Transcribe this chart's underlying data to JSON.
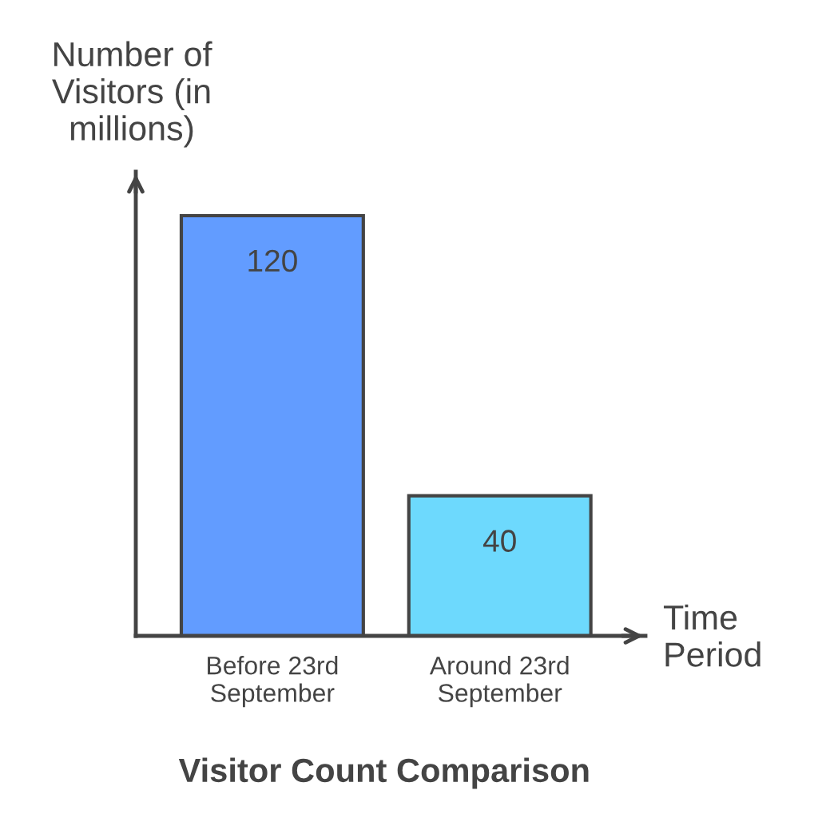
{
  "chart_data": {
    "type": "bar",
    "title": "Visitor Count Comparison",
    "xlabel": "Time Period",
    "ylabel": "Number of\nVisitors (in\nmillions)",
    "categories": [
      "Before 23rd\nSeptember",
      "Around 23rd\nSeptember"
    ],
    "values": [
      120,
      40
    ],
    "colors": [
      "#629cff",
      "#6dd9fd"
    ],
    "data_labels": true,
    "grid": false,
    "legend": false
  }
}
